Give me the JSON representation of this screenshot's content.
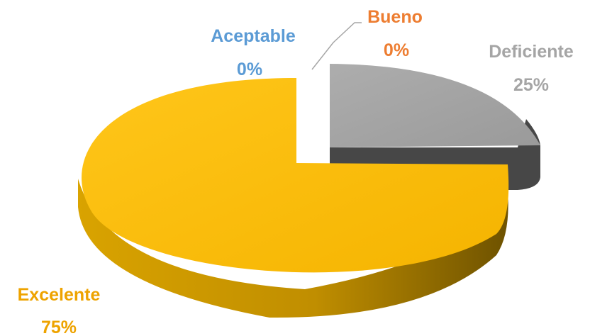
{
  "chart_data": {
    "type": "pie",
    "title": "",
    "style": "3d-exploded",
    "slices": [
      {
        "label": "Excelente",
        "value": 75,
        "pct_label": "75%",
        "color": "#FABB00",
        "side_color": "#B88700",
        "label_color": "#EEA300"
      },
      {
        "label": "Aceptable",
        "value": 0,
        "pct_label": "0%",
        "color": "#5B9BD5",
        "side_color": "#3D6F9E",
        "label_color": "#5B9BD5"
      },
      {
        "label": "Bueno",
        "value": 0,
        "pct_label": "0%",
        "color": "#ED7D31",
        "side_color": "#A9561F",
        "label_color": "#ED7D31"
      },
      {
        "label": "Deficiente",
        "value": 25,
        "pct_label": "25%",
        "color": "#A5A5A5",
        "side_color": "#444444",
        "label_color": "#A5A5A5"
      }
    ]
  }
}
